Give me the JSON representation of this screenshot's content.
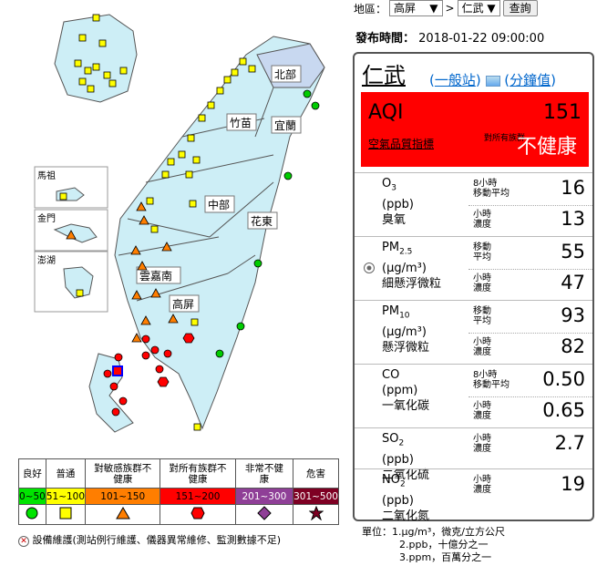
{
  "controls": {
    "region_label": "地區：",
    "region": "高屏",
    "separator": ">",
    "station": "仁武",
    "button": "查詢"
  },
  "publish": {
    "label": "發布時間：",
    "time": "2018-01-22 09:00:00"
  },
  "station": {
    "name": "仁武",
    "type_link": "一般站",
    "minute_link": "分鐘值"
  },
  "aqi": {
    "label": "AQI",
    "value": "151",
    "index_label": "空氣品質指標",
    "sensitive_label": "對所有族群",
    "status": "不健康"
  },
  "pollutants": [
    {
      "name1": "O",
      "sub": "3",
      "unit": "(ppb)",
      "cn": "臭氧",
      "r1": [
        "8小時",
        "移動平均"
      ],
      "v1": "16",
      "r2": [
        "小時",
        "濃度"
      ],
      "v2": "13"
    },
    {
      "name1": "PM",
      "sub": "2.5",
      "unit": "(μg/m³)",
      "cn": "細懸浮微粒",
      "r1": [
        "移動",
        "平均"
      ],
      "v1": "55",
      "r2": [
        "小時",
        "濃度"
      ],
      "v2": "47"
    },
    {
      "name1": "PM",
      "sub": "10",
      "unit": "(μg/m³)",
      "cn": "懸浮微粒",
      "r1": [
        "移動",
        "平均"
      ],
      "v1": "93",
      "r2": [
        "小時",
        "濃度"
      ],
      "v2": "82"
    },
    {
      "name1": "CO",
      "sub": "",
      "unit": "(ppm)",
      "cn": "一氧化碳",
      "r1": [
        "8小時",
        "移動平均"
      ],
      "v1": "0.50",
      "r2": [
        "小時",
        "濃度"
      ],
      "v2": "0.65"
    },
    {
      "name1": "SO",
      "sub": "2",
      "unit": "(ppb)",
      "cn": "二氧化硫",
      "r1": [
        "小時",
        "濃度"
      ],
      "v1": "2.7",
      "r2": null,
      "v2": null
    },
    {
      "name1": "NO",
      "sub": "2",
      "unit": "(ppb)",
      "cn": "二氧化氮",
      "r1": [
        "小時",
        "濃度"
      ],
      "v1": "19",
      "r2": null,
      "v2": null
    }
  ],
  "units": [
    "單位：1.μg/m³，微克/立方公尺",
    "2.ppb，十億分之一",
    "3.ppm，百萬分之一"
  ],
  "map": {
    "regions": [
      "北部",
      "竹苗",
      "宜蘭",
      "中部",
      "花東",
      "雲嘉南",
      "高屏"
    ],
    "islands": [
      "馬祖",
      "金門",
      "澎湖"
    ]
  },
  "legend": {
    "headers": [
      "良好",
      "普通",
      "對敏感族群不健康",
      "對所有族群不健康",
      "非常不健康",
      "危害"
    ],
    "ranges": [
      "0~50",
      "51~100",
      "101~150",
      "151~200",
      "201~300",
      "301~500"
    ],
    "colors": [
      "#00e400",
      "#ffff00",
      "#ff7e00",
      "#ff0000",
      "#8f3f97",
      "#7e0023"
    ]
  },
  "maintenance": "設備維護(測站例行維護、儀器異常維修、監測數據不足)"
}
